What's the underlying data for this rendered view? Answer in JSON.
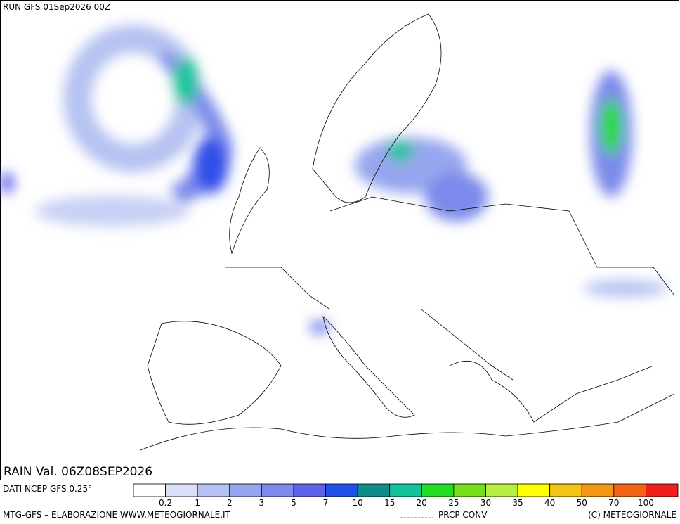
{
  "header": {
    "run": "RUN GFS 01Sep2026 00Z"
  },
  "map": {
    "valid": "RAIN Val. 06Z08SEP2026"
  },
  "legend": {
    "source": "DATI NCEP GFS 0.25°",
    "levels": [
      "0.2",
      "1",
      "2",
      "3",
      "5",
      "7",
      "10",
      "15",
      "20",
      "25",
      "30",
      "35",
      "40",
      "50",
      "70",
      "100"
    ],
    "colors": [
      "#ffffff",
      "#d9dff6",
      "#b6c2f1",
      "#96a6ee",
      "#7c8aeb",
      "#6062e8",
      "#1f50ea",
      "#0f8b8b",
      "#12c49b",
      "#22dc22",
      "#74de18",
      "#b8ee40",
      "#ffff00",
      "#f2c414",
      "#f29614",
      "#f26414",
      "#f21e1e"
    ]
  },
  "footer": {
    "credit": "MTG-GFS – ELABORAZIONE WWW.METEOGIORNALE.IT",
    "prcp": "PRCP CONV",
    "copyright": "(C) METEOGIORNALE"
  }
}
